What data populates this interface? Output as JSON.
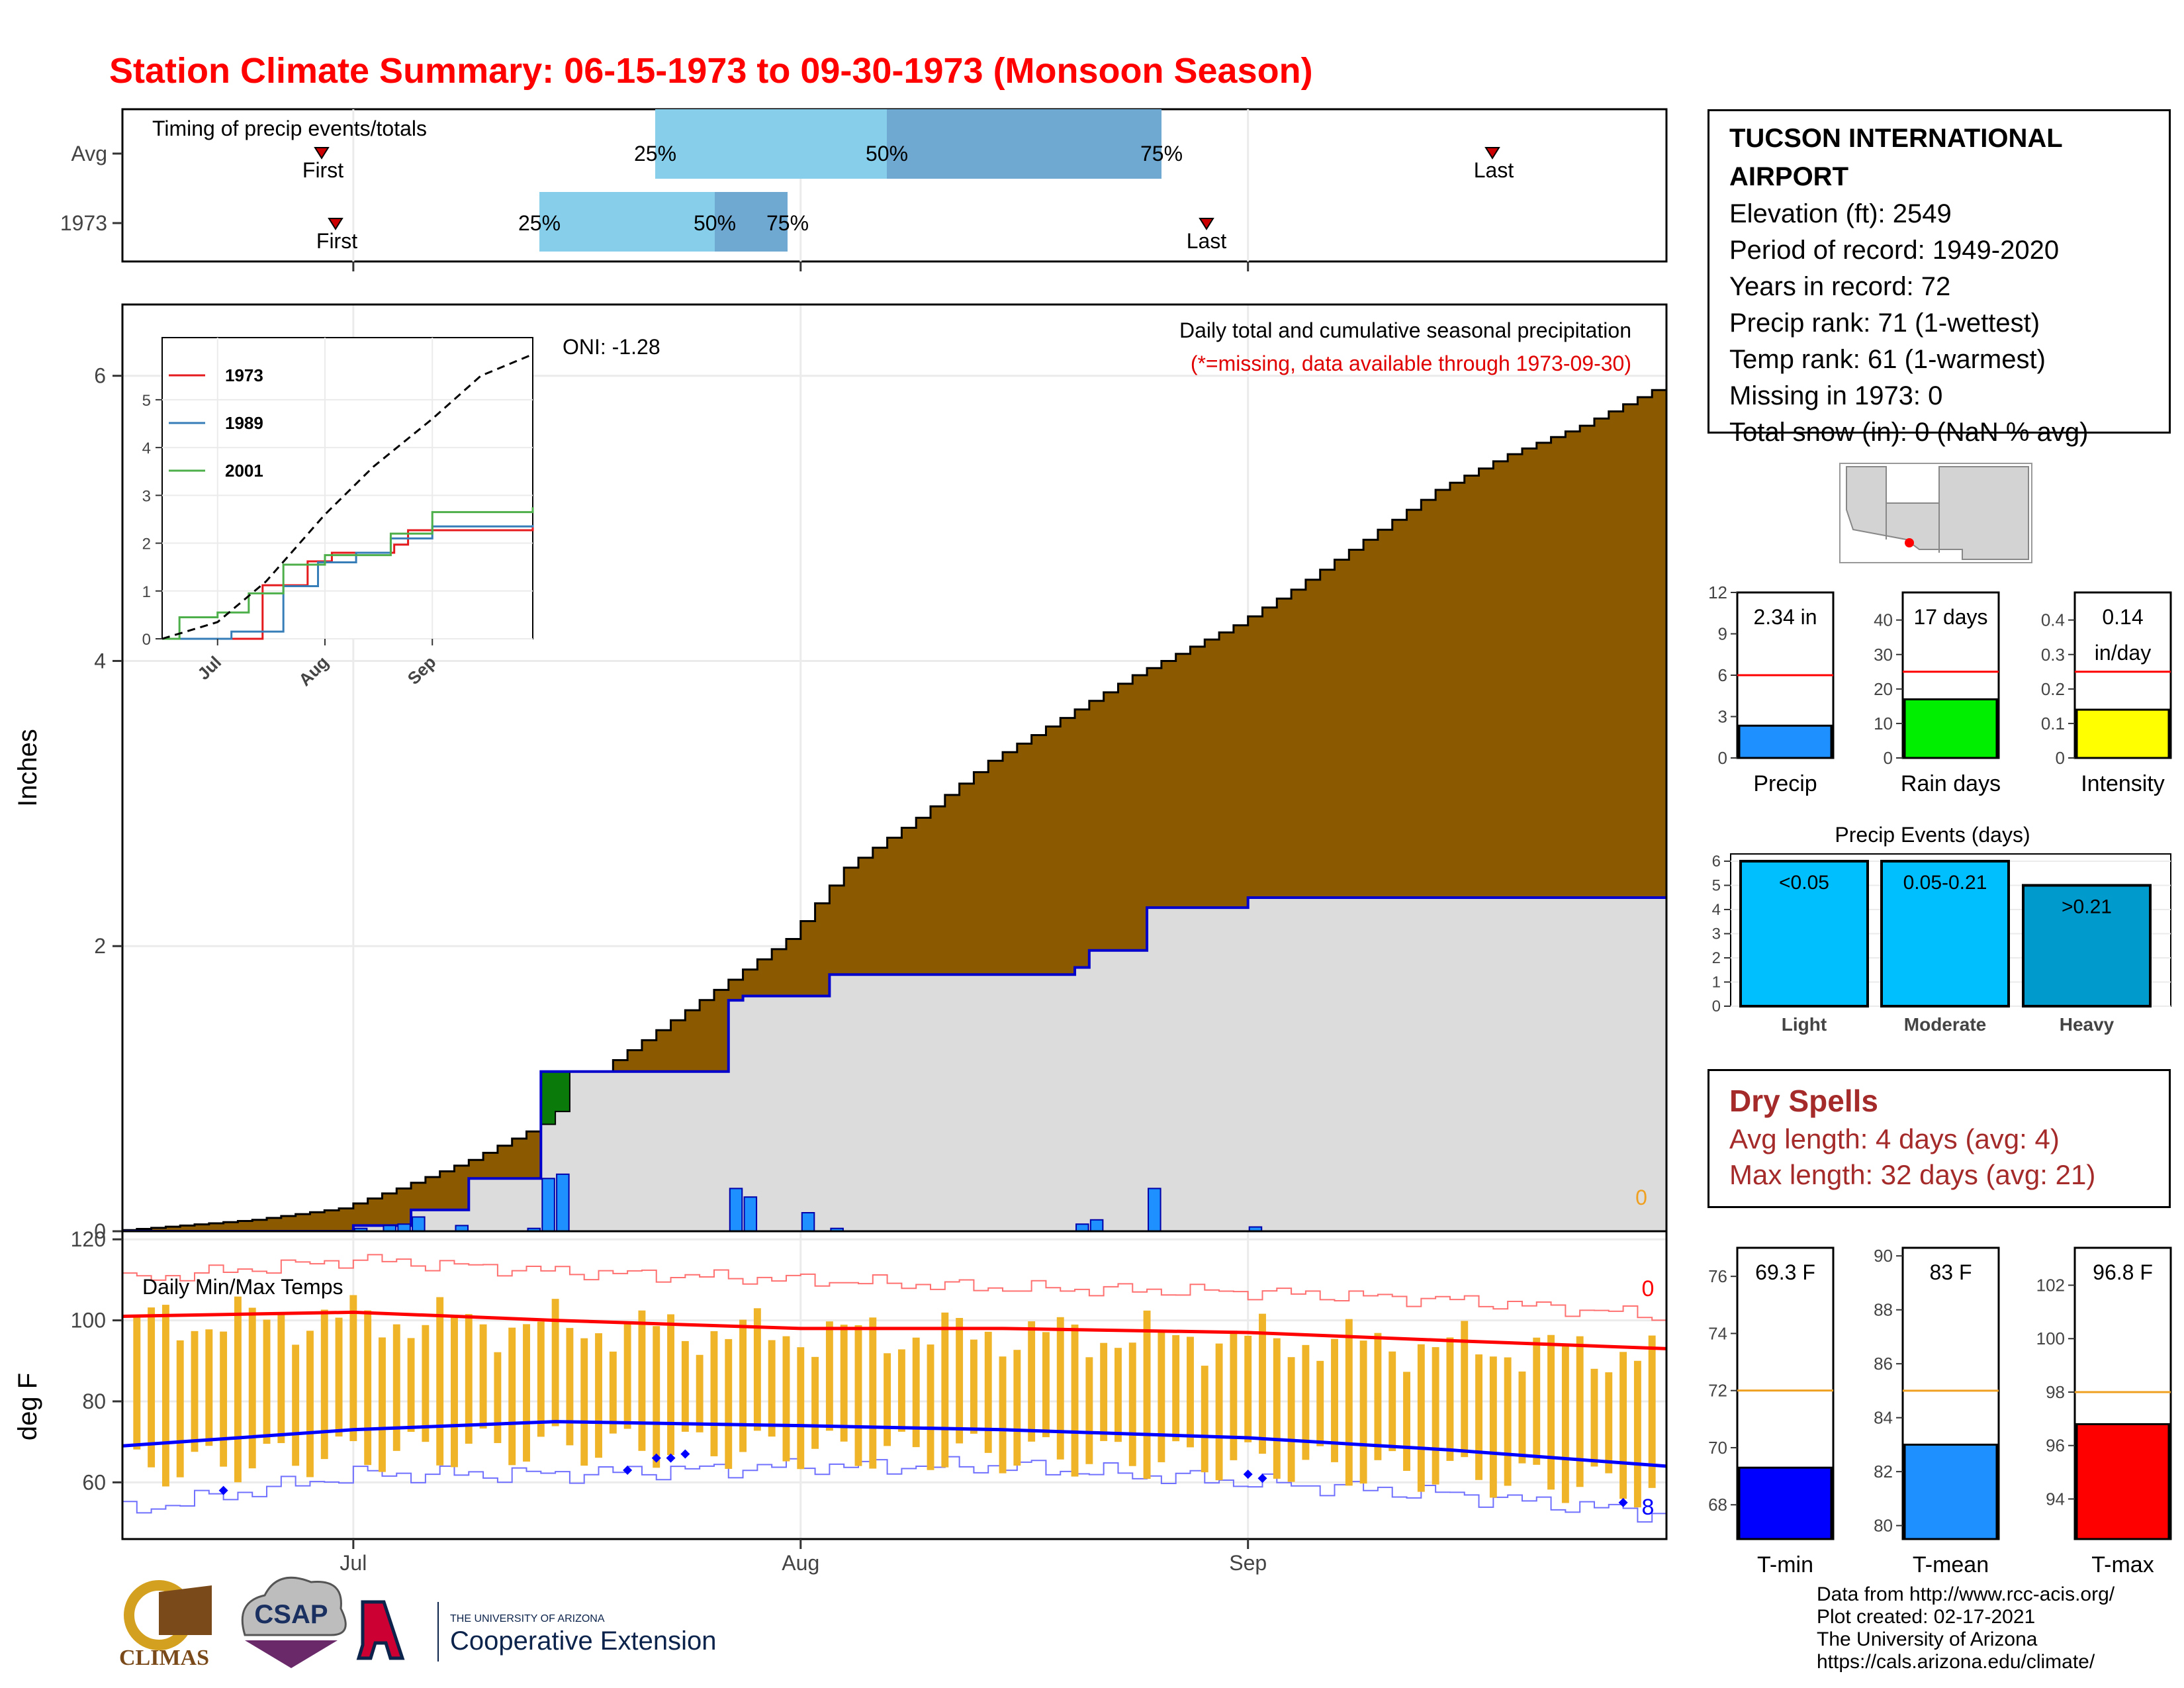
{
  "title": "Station Climate Summary: 06-15-1973 to 09-30-1973 (Monsoon Season)",
  "colors": {
    "title": "#ff0000",
    "cumulative_fill": "#8b5a00",
    "year_fill": "#dcdcdc",
    "year_line": "#0000cc",
    "daily_bar": "#1e90ff",
    "timing_light": "#87ceeb",
    "timing_dark": "#6fa8d0",
    "temp_bar": "#f0b429",
    "tmax_avg": "#ff0000",
    "tmin_avg": "#0000ff",
    "dry_spell": "#a52a2a"
  },
  "station": {
    "name": "TUCSON INTERNATIONAL AIRPORT",
    "lines": [
      "Elevation (ft): 2549",
      "Period of record: 1949-2020",
      "Years in record: 72",
      "Precip rank: 71 (1-wettest)",
      "Temp rank: 61 (1-warmest)",
      "Missing in 1973: 0",
      "Total snow (in): 0 (NaN % avg)"
    ]
  },
  "timing": {
    "title": "Timing of precip events/totals",
    "rows": [
      {
        "label": "Avg",
        "first": "First",
        "last": "Last",
        "p25": "25%",
        "p50": "50%",
        "p75": "75%"
      },
      {
        "label": "1973",
        "first": "First",
        "last": "Last",
        "p25": "25%",
        "p50": "50%",
        "p75": "75%"
      }
    ]
  },
  "main_chart": {
    "ylabel": "Inches",
    "title": "Daily total and cumulative seasonal precipitation",
    "subtitle": "(*=missing, data available through 1973-09-30)",
    "oni": "ONI: -1.28",
    "zero_label": "0",
    "month_labels": [
      "Jul",
      "Aug",
      "Sep"
    ]
  },
  "inset": {
    "legend": [
      "1973",
      "1989",
      "2001"
    ],
    "month_labels": [
      "Jul",
      "Aug",
      "Sep"
    ]
  },
  "mini_bars": [
    {
      "label": "Precip",
      "value_text": "2.34 in"
    },
    {
      "label": "Rain days",
      "value_text": "17 days"
    },
    {
      "label": "Intensity",
      "value_text": "0.14",
      "value_text2": "in/day"
    }
  ],
  "events": {
    "title": "Precip Events (days)",
    "bars": [
      {
        "label": "Light",
        "range": "<0.05"
      },
      {
        "label": "Moderate",
        "range": "0.05-0.21"
      },
      {
        "label": "Heavy",
        "range": ">0.21"
      }
    ]
  },
  "dry_spells": {
    "title": "Dry Spells",
    "avg": "Avg length: 4 days (avg: 4)",
    "max": "Max length: 32 days (avg: 21)"
  },
  "temp_chart": {
    "ylabel": "deg F",
    "title": "Daily Min/Max Temps",
    "top_count": "0",
    "bottom_count": "8",
    "month_labels": [
      "Jul",
      "Aug",
      "Sep"
    ]
  },
  "temp_bars": [
    {
      "label": "T-min",
      "value_text": "69.3 F"
    },
    {
      "label": "T-mean",
      "value_text": "83 F"
    },
    {
      "label": "T-max",
      "value_text": "96.8 F"
    }
  ],
  "credits": [
    "Data from http://www.rcc-acis.org/",
    "Plot created: 02-17-2021",
    "The University of Arizona",
    "https://cals.arizona.edu/climate/"
  ],
  "logos": {
    "climas": "CLIMAS",
    "csap": "CSAP",
    "ua_small": "THE UNIVERSITY OF ARIZONA",
    "coop": "Cooperative Extension"
  },
  "chart_data": [
    {
      "type": "area",
      "title": "Daily total and cumulative seasonal precipitation",
      "ylabel": "Inches",
      "ylim": [
        0,
        6.5
      ],
      "yticks": [
        0,
        2,
        4,
        6
      ],
      "x_range": [
        "1973-06-15",
        "1973-09-30"
      ],
      "series": [
        {
          "name": "",
          "points": [
            [
              "06-15",
              0
            ],
            [
              "06-25",
              0.08
            ],
            [
              "07-01",
              0.16
            ],
            [
              "07-05",
              0.3
            ],
            [
              "07-10",
              0.5
            ],
            [
              "07-15",
              0.75
            ],
            [
              "07-20",
              1.2
            ],
            [
              "07-25",
              1.55
            ],
            [
              "08-01",
              2.05
            ],
            [
              "08-05",
              2.55
            ],
            [
              "08-10",
              2.9
            ],
            [
              "08-15",
              3.3
            ],
            [
              "08-20",
              3.6
            ],
            [
              "08-25",
              3.9
            ],
            [
              "09-01",
              4.25
            ],
            [
              "09-05",
              4.5
            ],
            [
              "09-10",
              4.85
            ],
            [
              "09-15",
              5.2
            ],
            [
              "09-20",
              5.45
            ],
            [
              "09-25",
              5.65
            ],
            [
              "09-30",
              5.9
            ]
          ]
        },
        {
          "name": "",
          "points": [
            [
              "06-15",
              0
            ],
            [
              "07-01",
              0.04
            ],
            [
              "07-05",
              0.15
            ],
            [
              "07-09",
              0.37
            ],
            [
              "07-13",
              0.37
            ],
            [
              "07-14",
              1.12
            ],
            [
              "07-22",
              1.12
            ],
            [
              "07-27",
              1.62
            ],
            [
              "07-28",
              1.65
            ],
            [
              "08-03",
              1.8
            ],
            [
              "08-20",
              1.85
            ],
            [
              "08-21",
              1.97
            ],
            [
              "08-25",
              2.27
            ],
            [
              "09-01",
              2.34
            ],
            [
              "09-30",
              2.34
            ]
          ]
        }
      ],
      "daily": [
        [
          "07-01",
          0.02
        ],
        [
          "07-03",
          0.04
        ],
        [
          "07-04",
          0.05
        ],
        [
          "07-05",
          0.1
        ],
        [
          "07-08",
          0.04
        ],
        [
          "07-13",
          0.02
        ],
        [
          "07-14",
          0.37
        ],
        [
          "07-15",
          0.4
        ],
        [
          "07-27",
          0.3
        ],
        [
          "07-28",
          0.24
        ],
        [
          "08-01",
          0.13
        ],
        [
          "08-03",
          0.02
        ],
        [
          "08-20",
          0.05
        ],
        [
          "08-21",
          0.08
        ],
        [
          "08-25",
          0.3
        ],
        [
          "09-01",
          0.03
        ]
      ]
    },
    {
      "type": "line",
      "xlabel": "",
      "ylabel": "",
      "ylim": [
        0,
        6.3
      ],
      "yticks": [
        0,
        1,
        2,
        3,
        4,
        5
      ],
      "series": [
        {
          "name": "1973",
          "points": [
            [
              "06-15",
              0
            ],
            [
              "07-14",
              1.12
            ],
            [
              "07-27",
              1.62
            ],
            [
              "08-03",
              1.8
            ],
            [
              "08-21",
              1.97
            ],
            [
              "08-25",
              2.27
            ],
            [
              "09-30",
              2.34
            ]
          ]
        },
        {
          "name": "1989",
          "points": [
            [
              "06-15",
              0
            ],
            [
              "07-05",
              0.15
            ],
            [
              "07-20",
              1.1
            ],
            [
              "07-30",
              1.6
            ],
            [
              "08-10",
              1.8
            ],
            [
              "08-20",
              2.1
            ],
            [
              "09-01",
              2.35
            ],
            [
              "09-30",
              2.38
            ]
          ]
        },
        {
          "name": "2001",
          "points": [
            [
              "06-15",
              0
            ],
            [
              "06-20",
              0.45
            ],
            [
              "07-01",
              0.55
            ],
            [
              "07-10",
              0.95
            ],
            [
              "07-20",
              1.55
            ],
            [
              "08-01",
              1.75
            ],
            [
              "08-20",
              2.2
            ],
            [
              "09-01",
              2.65
            ],
            [
              "09-30",
              2.75
            ]
          ]
        },
        {
          "name": "",
          "points": [
            [
              "06-15",
              0
            ],
            [
              "07-01",
              0.35
            ],
            [
              "07-15",
              1.2
            ],
            [
              "08-01",
              2.6
            ],
            [
              "08-15",
              3.6
            ],
            [
              "09-01",
              4.6
            ],
            [
              "09-15",
              5.5
            ],
            [
              "09-30",
              5.95
            ]
          ]
        }
      ]
    },
    {
      "type": "bar",
      "categories": [
        "Precip",
        "Rain days",
        "Intensity"
      ],
      "values": [
        2.34,
        17,
        0.14
      ],
      "averages": [
        6,
        25,
        0.25
      ],
      "ylims": [
        [
          0,
          12
        ],
        [
          0,
          48
        ],
        [
          0,
          0.48
        ]
      ],
      "yticks": [
        [
          0,
          3,
          6,
          9,
          12
        ],
        [
          0,
          10,
          20,
          30,
          40
        ],
        [
          0.0,
          0.1,
          0.2,
          0.3,
          0.4
        ]
      ]
    },
    {
      "type": "bar",
      "title": "Precip Events (days)",
      "categories": [
        "Light",
        "Moderate",
        "Heavy"
      ],
      "values": [
        6,
        6,
        5
      ],
      "ylim": [
        0,
        6.3
      ],
      "yticks": [
        0,
        1,
        2,
        3,
        4,
        5,
        6
      ]
    },
    {
      "type": "bar",
      "title": "Daily Min/Max Temps",
      "ylabel": "deg F",
      "ylim": [
        46,
        122
      ],
      "yticks": [
        60,
        80,
        100,
        120
      ],
      "tmax_avg": [
        [
          "06-15",
          101
        ],
        [
          "07-01",
          102
        ],
        [
          "07-15",
          100
        ],
        [
          "08-01",
          98
        ],
        [
          "08-15",
          98
        ],
        [
          "09-01",
          97
        ],
        [
          "09-15",
          95
        ],
        [
          "09-30",
          93
        ]
      ],
      "tmin_avg": [
        [
          "06-15",
          69
        ],
        [
          "07-01",
          73
        ],
        [
          "07-15",
          75
        ],
        [
          "08-01",
          74
        ],
        [
          "08-15",
          73
        ],
        [
          "09-01",
          71
        ],
        [
          "09-15",
          68
        ],
        [
          "09-30",
          64
        ]
      ],
      "tmax_record": [
        [
          "06-15",
          110
        ],
        [
          "07-01",
          115
        ],
        [
          "07-15",
          112
        ],
        [
          "08-01",
          110
        ],
        [
          "08-15",
          108
        ],
        [
          "09-01",
          107
        ],
        [
          "09-15",
          105
        ],
        [
          "09-30",
          101
        ]
      ],
      "tmin_record": [
        [
          "06-15",
          53
        ],
        [
          "07-01",
          62
        ],
        [
          "07-15",
          62
        ],
        [
          "08-01",
          64
        ],
        [
          "08-15",
          64
        ],
        [
          "09-01",
          60
        ],
        [
          "09-15",
          57
        ],
        [
          "09-30",
          52
        ]
      ],
      "record_lows": [
        [
          "06-22",
          58
        ],
        [
          "07-20",
          63
        ],
        [
          "07-22",
          66
        ],
        [
          "07-23",
          66
        ],
        [
          "07-24",
          67
        ],
        [
          "09-01",
          62
        ],
        [
          "09-02",
          61
        ],
        [
          "09-27",
          55
        ]
      ]
    },
    {
      "type": "bar",
      "categories": [
        "T-min",
        "T-mean",
        "T-max"
      ],
      "values": [
        69.3,
        83,
        96.8
      ],
      "averages": [
        72,
        85,
        98
      ],
      "ylims": [
        [
          66.8,
          77
        ],
        [
          79.5,
          90.3
        ],
        [
          92.5,
          103.4
        ]
      ],
      "yticks": [
        [
          68,
          70,
          72,
          74,
          76
        ],
        [
          80,
          82,
          84,
          86,
          88,
          90
        ],
        [
          94,
          96,
          98,
          100,
          102
        ]
      ]
    }
  ]
}
